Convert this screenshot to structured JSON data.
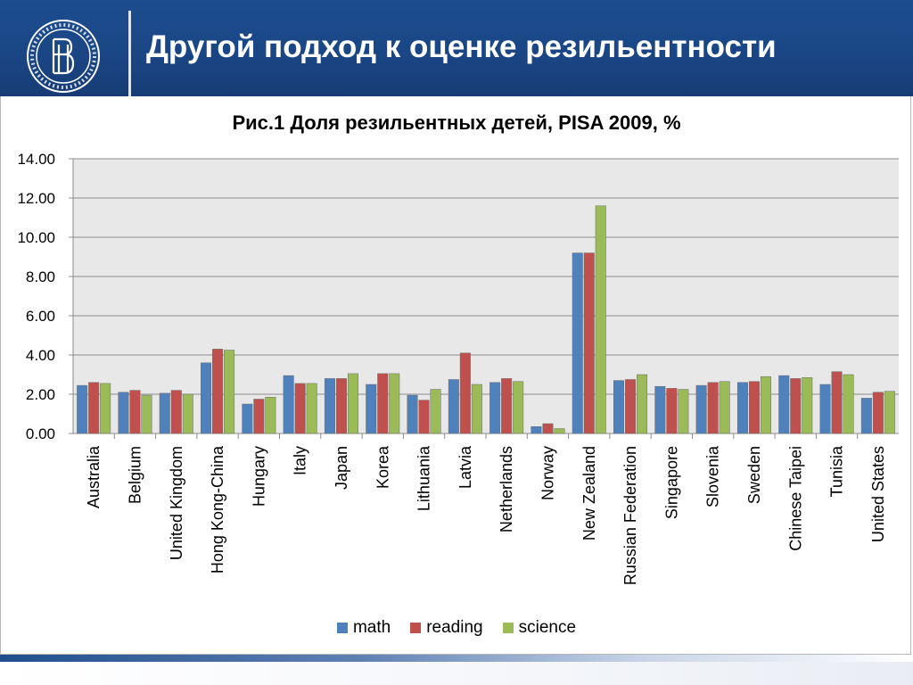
{
  "header": {
    "title": "Другой подход к оценке резильентности"
  },
  "legend_items": {
    "math": "math",
    "reading": "reading",
    "science": "science"
  },
  "chart_data": {
    "type": "bar",
    "title": "Рис.1 Доля резильентных детей, PISA 2009, %",
    "xlabel": "",
    "ylabel": "",
    "ylim": [
      0,
      14
    ],
    "yticks": [
      "0.00",
      "2.00",
      "4.00",
      "6.00",
      "8.00",
      "10.00",
      "12.00",
      "14.00"
    ],
    "grid": true,
    "legend_position": "bottom",
    "categories": [
      "Australia",
      "Belgium",
      "United Kingdom",
      "Hong Kong-China",
      "Hungary",
      "Italy",
      "Japan",
      "Korea",
      "Lithuania",
      "Latvia",
      "Netherlands",
      "Norway",
      "New Zealand",
      "Russian Federation",
      "Singapore",
      "Slovenia",
      "Sweden",
      "Chinese Taipei",
      "Tunisia",
      "United States"
    ],
    "series": [
      {
        "name": "math",
        "color": "#4f81bd",
        "values": [
          2.45,
          2.1,
          2.05,
          3.6,
          1.5,
          2.95,
          2.8,
          2.5,
          1.95,
          2.75,
          2.6,
          0.35,
          9.2,
          2.7,
          2.4,
          2.45,
          2.6,
          2.95,
          2.5,
          1.8
        ]
      },
      {
        "name": "reading",
        "color": "#c0504d",
        "values": [
          2.6,
          2.2,
          2.2,
          4.3,
          1.75,
          2.55,
          2.8,
          3.05,
          1.7,
          4.1,
          2.8,
          0.5,
          9.2,
          2.75,
          2.3,
          2.6,
          2.65,
          2.8,
          3.15,
          2.1
        ]
      },
      {
        "name": "science",
        "color": "#9bbb59",
        "values": [
          2.55,
          1.95,
          2.0,
          4.25,
          1.85,
          2.55,
          3.05,
          3.05,
          2.25,
          2.5,
          2.65,
          0.25,
          11.6,
          3.0,
          2.25,
          2.65,
          2.9,
          2.85,
          3.0,
          2.15
        ]
      }
    ]
  }
}
